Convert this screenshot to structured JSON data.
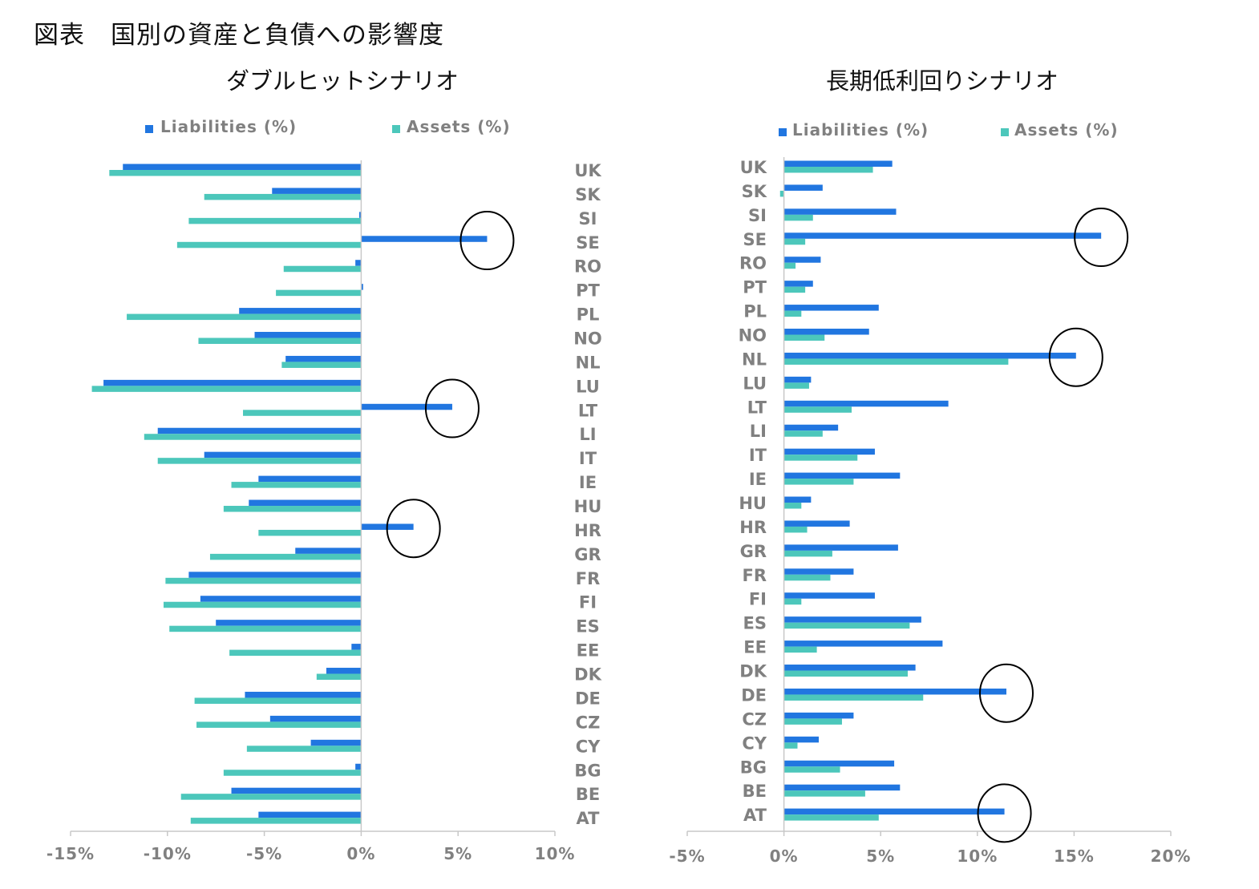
{
  "figure_title": "図表　国別の資産と負債への影響度",
  "colors": {
    "liabilities": "#2176e0",
    "assets": "#4cc7bb",
    "axis": "#c8c8c8",
    "label": "#808080",
    "circle": "#000000"
  },
  "chart_data": [
    {
      "type": "bar",
      "orientation": "horizontal",
      "title": "ダブルヒットシナリオ",
      "categories": [
        "UK",
        "SK",
        "SI",
        "SE",
        "RO",
        "PT",
        "PL",
        "NO",
        "NL",
        "LU",
        "LT",
        "LI",
        "IT",
        "IE",
        "HU",
        "HR",
        "GR",
        "FR",
        "FI",
        "ES",
        "EE",
        "DK",
        "DE",
        "CZ",
        "CY",
        "BG",
        "BE",
        "AT"
      ],
      "series": [
        {
          "name": "Liabilities (%)",
          "values": [
            -12.3,
            -4.6,
            -0.1,
            6.5,
            -0.3,
            0.1,
            -6.3,
            -5.5,
            -3.9,
            -13.3,
            4.7,
            -10.5,
            -8.1,
            -5.3,
            -5.8,
            2.7,
            -3.4,
            -8.9,
            -8.3,
            -7.5,
            -0.5,
            -1.8,
            -6.0,
            -4.7,
            -2.6,
            -0.3,
            -6.7,
            -5.3
          ]
        },
        {
          "name": "Assets (%)",
          "values": [
            -13.0,
            -8.1,
            -8.9,
            -9.5,
            -4.0,
            -4.4,
            -12.1,
            -8.4,
            -4.1,
            -13.9,
            -6.1,
            -11.2,
            -10.5,
            -6.7,
            -7.1,
            -5.3,
            -7.8,
            -10.1,
            -10.2,
            -9.9,
            -6.8,
            -2.3,
            -8.6,
            -8.5,
            -5.9,
            -7.1,
            -9.3,
            -8.8
          ]
        }
      ],
      "highlighted": [
        "SE",
        "LT",
        "HR"
      ],
      "xlim": [
        -15,
        10
      ],
      "xticks": [
        "-15%",
        "-10%",
        "-5%",
        "0%",
        "5%",
        "10%"
      ],
      "legend_position": "top"
    },
    {
      "type": "bar",
      "orientation": "horizontal",
      "title": "長期低利回りシナリオ",
      "categories": [
        "UK",
        "SK",
        "SI",
        "SE",
        "RO",
        "PT",
        "PL",
        "NO",
        "NL",
        "LU",
        "LT",
        "LI",
        "IT",
        "IE",
        "HU",
        "HR",
        "GR",
        "FR",
        "FI",
        "ES",
        "EE",
        "DK",
        "DE",
        "CZ",
        "CY",
        "BG",
        "BE",
        "AT"
      ],
      "series": [
        {
          "name": "Liabilities (%)",
          "values": [
            5.6,
            2.0,
            5.8,
            16.4,
            1.9,
            1.5,
            4.9,
            4.4,
            15.1,
            1.4,
            8.5,
            2.8,
            4.7,
            6.0,
            1.4,
            3.4,
            5.9,
            3.6,
            4.7,
            7.1,
            8.2,
            6.8,
            11.5,
            3.6,
            1.8,
            5.7,
            6.0,
            11.4
          ]
        },
        {
          "name": "Assets (%)",
          "values": [
            4.6,
            -0.2,
            1.5,
            1.1,
            0.6,
            1.1,
            0.9,
            2.1,
            11.6,
            1.3,
            3.5,
            2.0,
            3.8,
            3.6,
            0.9,
            1.2,
            2.5,
            2.4,
            0.9,
            6.5,
            1.7,
            6.4,
            7.2,
            3.0,
            0.7,
            2.9,
            4.2,
            4.9
          ]
        }
      ],
      "highlighted": [
        "SE",
        "NL",
        "DE",
        "AT"
      ],
      "xlim": [
        -5,
        20
      ],
      "xticks": [
        "-5%",
        "0%",
        "5%",
        "10%",
        "15%",
        "20%"
      ],
      "legend_position": "top"
    }
  ]
}
